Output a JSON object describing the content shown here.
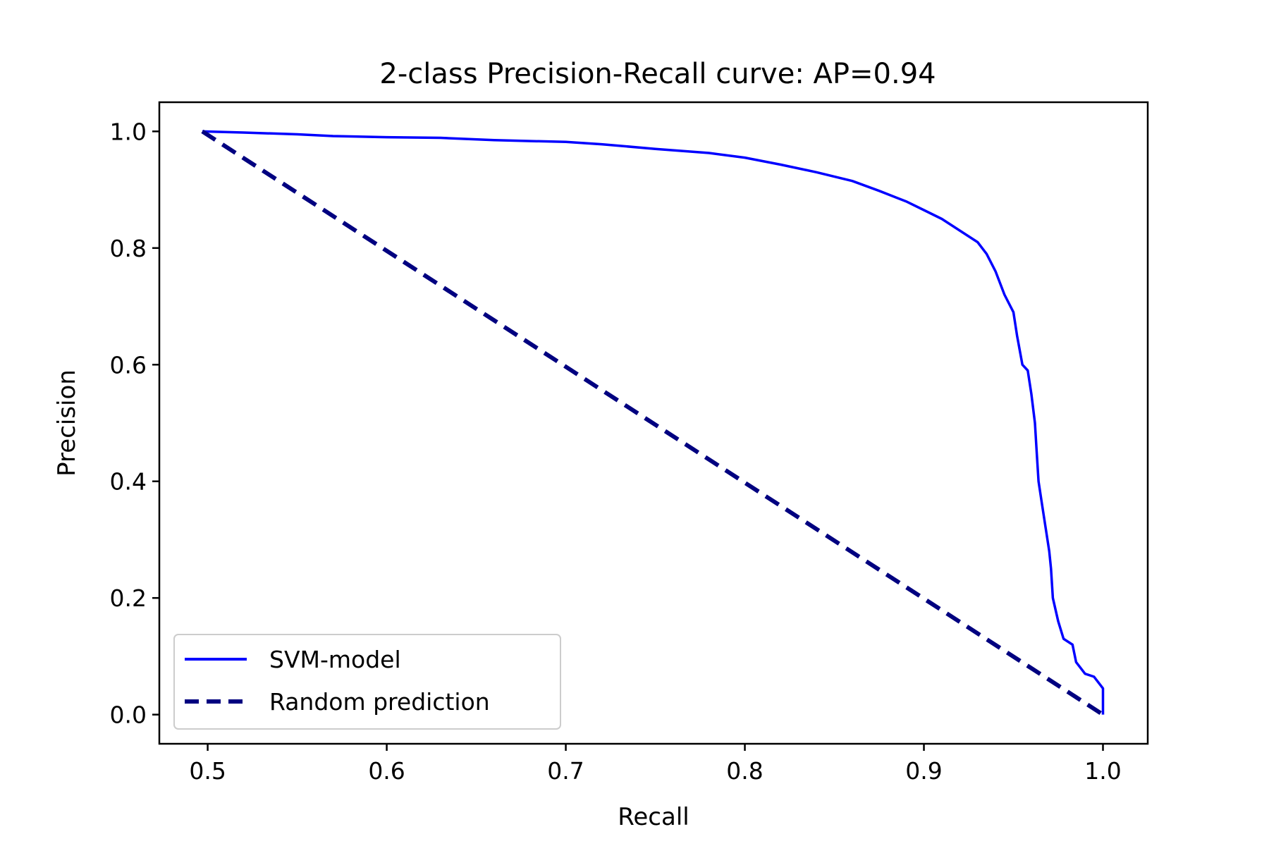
{
  "chart_data": {
    "type": "line",
    "title": "2-class Precision-Recall curve: AP=0.94",
    "xlabel": "Recall",
    "ylabel": "Precision",
    "xlim": [
      0.473,
      1.025
    ],
    "ylim": [
      -0.05,
      1.05
    ],
    "xticks": [
      "0.5",
      "0.6",
      "0.7",
      "0.8",
      "0.9",
      "1.0"
    ],
    "yticks": [
      "0.0",
      "0.2",
      "0.4",
      "0.6",
      "0.8",
      "1.0"
    ],
    "legend_position": "lower-left",
    "grid": false,
    "series": [
      {
        "name": "SVM-model",
        "color": "#0000ff",
        "style": "solid",
        "x": [
          0.497,
          0.52,
          0.55,
          0.57,
          0.6,
          0.63,
          0.66,
          0.7,
          0.72,
          0.75,
          0.78,
          0.8,
          0.82,
          0.84,
          0.86,
          0.875,
          0.89,
          0.9,
          0.91,
          0.92,
          0.93,
          0.935,
          0.94,
          0.945,
          0.95,
          0.952,
          0.955,
          0.958,
          0.96,
          0.962,
          0.963,
          0.964,
          0.965,
          0.966,
          0.968,
          0.97,
          0.971,
          0.972,
          0.975,
          0.978,
          0.983,
          0.985,
          0.99,
          0.995,
          1.0,
          1.0
        ],
        "y": [
          1.0,
          0.998,
          0.995,
          0.992,
          0.99,
          0.989,
          0.985,
          0.982,
          0.978,
          0.97,
          0.963,
          0.955,
          0.943,
          0.93,
          0.915,
          0.898,
          0.88,
          0.865,
          0.85,
          0.83,
          0.81,
          0.79,
          0.76,
          0.72,
          0.69,
          0.65,
          0.6,
          0.59,
          0.55,
          0.5,
          0.45,
          0.4,
          0.38,
          0.36,
          0.32,
          0.28,
          0.25,
          0.2,
          0.16,
          0.13,
          0.12,
          0.09,
          0.07,
          0.065,
          0.045,
          0.0
        ]
      },
      {
        "name": "Random prediction",
        "color": "#000080",
        "style": "dashed",
        "x": [
          0.497,
          1.0
        ],
        "y": [
          1.0,
          0.0
        ]
      }
    ]
  }
}
